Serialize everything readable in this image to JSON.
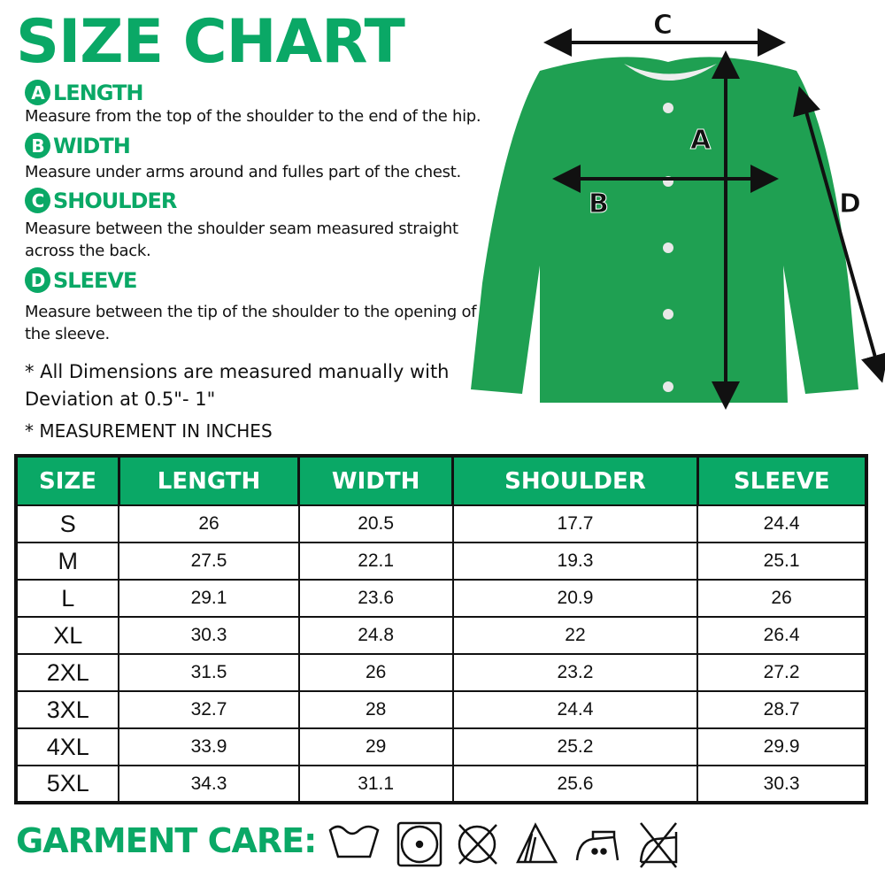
{
  "title": "SIZE CHART",
  "sections": [
    {
      "letter": "A",
      "label": "LENGTH",
      "desc": "Measure from the top of the shoulder to the end of the hip."
    },
    {
      "letter": "B",
      "label": "WIDTH",
      "desc": "Measure under arms around and fulles part of the chest."
    },
    {
      "letter": "C",
      "label": "SHOULDER",
      "desc": "Measure between the shoulder seam measured straight across the back."
    },
    {
      "letter": "D",
      "label": "SLEEVE",
      "desc": "Measure between the tip of the shoulder to the opening of the sleeve."
    }
  ],
  "notes": [
    "* All Dimensions are measured manually with Deviation at 0.5\"- 1\"",
    "* MEASUREMENT IN INCHES"
  ],
  "diagram": {
    "labels": [
      "A",
      "B",
      "C",
      "D"
    ],
    "garment_color": "#1fa052"
  },
  "table": {
    "headers": [
      "SIZE",
      "LENGTH",
      "WIDTH",
      "SHOULDER",
      "SLEEVE"
    ],
    "rows": [
      [
        "S",
        "26",
        "20.5",
        "17.7",
        "24.4"
      ],
      [
        "M",
        "27.5",
        "22.1",
        "19.3",
        "25.1"
      ],
      [
        "L",
        "29.1",
        "23.6",
        "20.9",
        "26"
      ],
      [
        "XL",
        "30.3",
        "24.8",
        "22",
        "26.4"
      ],
      [
        "2XL",
        "31.5",
        "26",
        "23.2",
        "27.2"
      ],
      [
        "3XL",
        "32.7",
        "28",
        "24.4",
        "28.7"
      ],
      [
        "4XL",
        "33.9",
        "29",
        "25.2",
        "29.9"
      ],
      [
        "5XL",
        "34.3",
        "31.1",
        "25.6",
        "30.3"
      ]
    ]
  },
  "care": {
    "label": "GARMENT CARE:",
    "icons": [
      "hand-wash-icon",
      "tumble-dry-icon",
      "do-not-dry-clean-icon",
      "bleach-icon",
      "iron-low-icon",
      "do-not-tumble-dry-icon"
    ]
  },
  "colors": {
    "accent": "#0aa866"
  }
}
